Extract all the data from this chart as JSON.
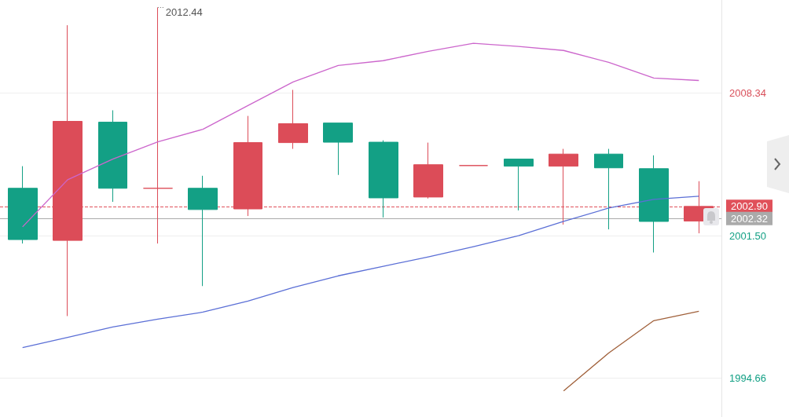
{
  "chart_data": {
    "type": "candlestick",
    "categories": [
      null,
      null,
      null,
      null,
      null,
      null,
      null,
      null,
      null,
      null,
      null,
      null,
      null,
      null,
      null,
      null
    ],
    "ohlc": [
      [
        2003.77,
        2004.83,
        2001.12,
        2001.31
      ],
      [
        2001.27,
        2011.59,
        1997.64,
        2006.98
      ],
      [
        2006.94,
        2007.51,
        2003.12,
        2003.77
      ],
      [
        2003.77,
        2012.44,
        2001.12,
        2003.77
      ],
      [
        2003.77,
        2004.37,
        1999.08,
        2002.75
      ],
      [
        2002.78,
        2007.24,
        2002.44,
        2005.96
      ],
      [
        2005.96,
        2008.49,
        2005.66,
        2006.87
      ],
      [
        2006.9,
        2006.9,
        2004.41,
        2005.98
      ],
      [
        2005.98,
        2006.07,
        2002.37,
        2003.31
      ],
      [
        2003.35,
        2005.96,
        2003.28,
        2004.9
      ],
      [
        2004.86,
        2004.86,
        2004.86,
        2004.86
      ],
      [
        2005.17,
        2005.17,
        2002.71,
        2004.83
      ],
      [
        2004.83,
        2005.66,
        2002.03,
        2005.41
      ],
      [
        2005.41,
        2005.66,
        2001.8,
        2004.75
      ],
      [
        2004.71,
        2005.35,
        2000.69,
        2002.18
      ],
      [
        2002.2,
        2004.11,
        2001.61,
        2002.9
      ]
    ],
    "colors": [
      "#13a085",
      "#dc4c58",
      "#13a085",
      "#dc4c58",
      "#13a085",
      "#dc4c58",
      "#dc4c58",
      "#13a085",
      "#13a085",
      "#dc4c58",
      "#dc4c58",
      "#13a085",
      "#dc4c58",
      "#13a085",
      "#13a085",
      "#dc4c58"
    ],
    "series": [
      {
        "type": "line",
        "color": "#cc66cc",
        "values": [
          2001.92,
          2004.18,
          2005.17,
          2006.0,
          2006.6,
          2007.74,
          2008.87,
          2009.66,
          2009.89,
          2010.34,
          2010.72,
          2010.57,
          2010.38,
          2009.81,
          2009.06,
          2008.94
        ]
      },
      {
        "type": "line",
        "color": "#5b6fd6",
        "values": [
          1996.13,
          1996.62,
          1997.12,
          1997.49,
          1997.83,
          1998.36,
          1999.01,
          1999.57,
          2000.03,
          2000.48,
          2000.97,
          2001.5,
          2002.18,
          2002.82,
          2003.24,
          2003.39
        ]
      },
      {
        "type": "line",
        "color": "#a0603a",
        "values": [
          null,
          null,
          null,
          null,
          null,
          null,
          null,
          null,
          null,
          null,
          null,
          null,
          1994.05,
          1995.87,
          1997.42,
          1997.87
        ]
      }
    ],
    "ylim": [
      1992.8,
      2012.8
    ],
    "yticks": [
      {
        "value": 1994.66,
        "label": "1994.66"
      },
      {
        "value": 2001.5,
        "label": "2001.50"
      },
      {
        "value": 2008.34,
        "label": "2008.34"
      }
    ],
    "grid": "y",
    "marker": "none",
    "ref_lines": [
      {
        "axis": "y",
        "value": 2002.9,
        "label": "2002.90",
        "color": "#e0505a",
        "line_style": "dashed"
      },
      {
        "axis": "y",
        "value": 2002.32,
        "label": "2002.32",
        "color": "#aaaaaa",
        "line_style": "solid"
      }
    ],
    "annotations": [
      "2012.44"
    ]
  }
}
